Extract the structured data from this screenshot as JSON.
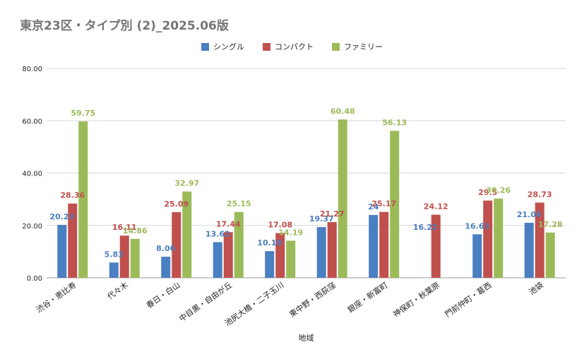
{
  "chart_data": {
    "type": "bar",
    "title": "東京23区・タイプ別 (2)_2025.06版",
    "xlabel": "地域",
    "ylabel": "",
    "ylim": [
      0,
      80
    ],
    "yticks": [
      "0.00",
      "20.00",
      "40.00",
      "60.00",
      "80.00"
    ],
    "grid": true,
    "legend_position": "top-center",
    "categories": [
      "渋谷・恵比寿",
      "代々木",
      "春日・白山",
      "中目黒・自由が丘",
      "池尻大橋・二子玉川",
      "東中野・西荻窪",
      "銀座・新富町",
      "神保町・秋葉原",
      "門前仲町・葛西",
      "池袋"
    ],
    "series": [
      {
        "name": "シングル",
        "color": "#4a7fc1",
        "values": [
          20.23,
          5.83,
          8.06,
          13.62,
          10.18,
          19.37,
          24,
          null,
          16.63,
          21.04
        ]
      },
      {
        "name": "コンパクト",
        "color": "#c0504d",
        "values": [
          28.36,
          16.11,
          25.09,
          17.44,
          17.08,
          21.27,
          25.17,
          24.12,
          29.5,
          28.73
        ]
      },
      {
        "name": "ファミリー",
        "color": "#9bbb59",
        "values": [
          59.75,
          14.86,
          32.97,
          25.15,
          14.19,
          60.48,
          56.13,
          null,
          30.26,
          17.28
        ]
      }
    ],
    "data_labels": [
      [
        "20.23",
        "5.83",
        "8.06",
        "13.62",
        "10.18",
        "19.37",
        "24",
        "",
        "16.63",
        "21.04"
      ],
      [
        "28.36",
        "16.11",
        "25.09",
        "17.44",
        "17.08",
        "21.27",
        "25.17",
        "24.12",
        "29.5",
        "28.73"
      ],
      [
        "59.75",
        "14.86",
        "32.97",
        "25.15",
        "14.19",
        "60.48",
        "56.13",
        "",
        "30.26",
        "17.28"
      ]
    ],
    "extra_labels": [
      {
        "category": 7,
        "series": 0,
        "text": "16.22",
        "value": 16.22
      }
    ]
  }
}
